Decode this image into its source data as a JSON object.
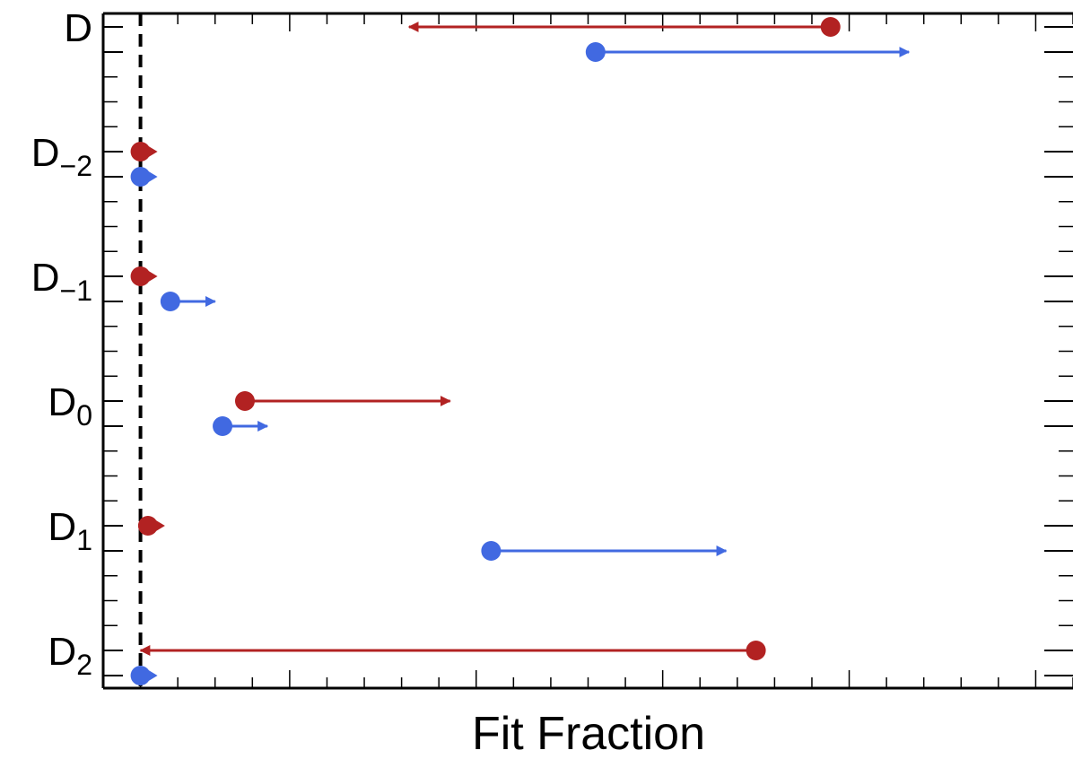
{
  "chart_data": {
    "type": "scatter",
    "title": "",
    "xlabel": "Fit Fraction",
    "ylabel": "",
    "xlim": [
      -0.1,
      1.2
    ],
    "categories": [
      {
        "base": "D",
        "sub": ""
      },
      {
        "base": "D",
        "sub": "-2"
      },
      {
        "base": "D",
        "sub": "-1"
      },
      {
        "base": "D",
        "sub": "0"
      },
      {
        "base": "D",
        "sub": "1"
      },
      {
        "base": "D",
        "sub": "2"
      }
    ],
    "reference_line_x": -0.05,
    "series": [
      {
        "color": "#b22222",
        "points": [
          {
            "category": 0,
            "value": 0.875,
            "arrow_to": 0.31
          },
          {
            "category": 1,
            "value": -0.05,
            "arrow_to": -0.03
          },
          {
            "category": 2,
            "value": -0.05,
            "arrow_to": -0.03
          },
          {
            "category": 3,
            "value": 0.09,
            "arrow_to": 0.365
          },
          {
            "category": 4,
            "value": -0.04,
            "arrow_to": -0.025
          },
          {
            "category": 5,
            "value": 0.775,
            "arrow_to": -0.05
          }
        ]
      },
      {
        "color": "#4169e1",
        "points": [
          {
            "category": 0,
            "value": 0.56,
            "arrow_to": 0.98
          },
          {
            "category": 1,
            "value": -0.05,
            "arrow_to": -0.03
          },
          {
            "category": 2,
            "value": -0.01,
            "arrow_to": 0.05
          },
          {
            "category": 3,
            "value": 0.06,
            "arrow_to": 0.12
          },
          {
            "category": 4,
            "value": 0.42,
            "arrow_to": 0.735
          },
          {
            "category": 5,
            "value": -0.05,
            "arrow_to": -0.03
          }
        ]
      }
    ],
    "colors": {
      "axis": "#000000",
      "reference_line": "#000000"
    }
  }
}
